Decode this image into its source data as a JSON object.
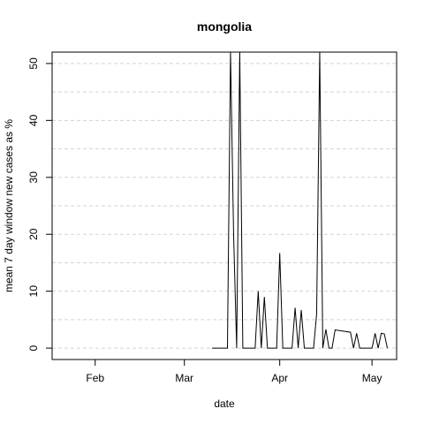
{
  "chart_data": {
    "type": "line",
    "title": "mongolia",
    "xlabel": "date",
    "ylabel": "mean  7  day window new cases as %",
    "x_ticks": [
      {
        "label": "Feb",
        "date": "2020-02-01"
      },
      {
        "label": "Mar",
        "date": "2020-03-01"
      },
      {
        "label": "Apr",
        "date": "2020-04-01"
      },
      {
        "label": "May",
        "date": "2020-05-01"
      }
    ],
    "y_ticks": [
      0,
      10,
      20,
      30,
      40,
      50
    ],
    "xlim": [
      "2020-01-18",
      "2020-05-09"
    ],
    "ylim": [
      -2,
      52
    ],
    "grid": {
      "horizontal": true,
      "style": "dashed",
      "color": "#d3d3d3"
    },
    "line_color": "#000000",
    "series": [
      {
        "points": [
          {
            "x": "2020-03-10",
            "y": 0
          },
          {
            "x": "2020-03-14",
            "y": 0
          },
          {
            "x": "2020-03-15",
            "y": 0
          },
          {
            "x": "2020-03-16",
            "y": 52
          },
          {
            "x": "2020-03-17",
            "y": 20
          },
          {
            "x": "2020-03-18",
            "y": 0
          },
          {
            "x": "2020-03-19",
            "y": 52
          },
          {
            "x": "2020-03-20",
            "y": 0
          },
          {
            "x": "2020-03-24",
            "y": 0
          },
          {
            "x": "2020-03-25",
            "y": 10
          },
          {
            "x": "2020-03-26",
            "y": 0
          },
          {
            "x": "2020-03-27",
            "y": 9
          },
          {
            "x": "2020-03-28",
            "y": 0
          },
          {
            "x": "2020-03-31",
            "y": 0
          },
          {
            "x": "2020-04-01",
            "y": 16.7
          },
          {
            "x": "2020-04-02",
            "y": 0
          },
          {
            "x": "2020-04-05",
            "y": 0
          },
          {
            "x": "2020-04-06",
            "y": 7.1
          },
          {
            "x": "2020-04-07",
            "y": 0
          },
          {
            "x": "2020-04-08",
            "y": 6.7
          },
          {
            "x": "2020-04-09",
            "y": 0
          },
          {
            "x": "2020-04-12",
            "y": 0
          },
          {
            "x": "2020-04-13",
            "y": 6
          },
          {
            "x": "2020-04-14",
            "y": 52
          },
          {
            "x": "2020-04-15",
            "y": 0
          },
          {
            "x": "2020-04-16",
            "y": 3.3
          },
          {
            "x": "2020-04-17",
            "y": 0
          },
          {
            "x": "2020-04-18",
            "y": 0
          },
          {
            "x": "2020-04-19",
            "y": 3.2
          },
          {
            "x": "2020-04-24",
            "y": 2.8
          },
          {
            "x": "2020-04-25",
            "y": 0
          },
          {
            "x": "2020-04-26",
            "y": 2.6
          },
          {
            "x": "2020-04-27",
            "y": 0
          },
          {
            "x": "2020-05-01",
            "y": 0
          },
          {
            "x": "2020-05-02",
            "y": 2.6
          },
          {
            "x": "2020-05-03",
            "y": 0
          },
          {
            "x": "2020-05-04",
            "y": 2.6
          },
          {
            "x": "2020-05-05",
            "y": 2.5
          },
          {
            "x": "2020-05-06",
            "y": 0
          }
        ]
      }
    ]
  }
}
